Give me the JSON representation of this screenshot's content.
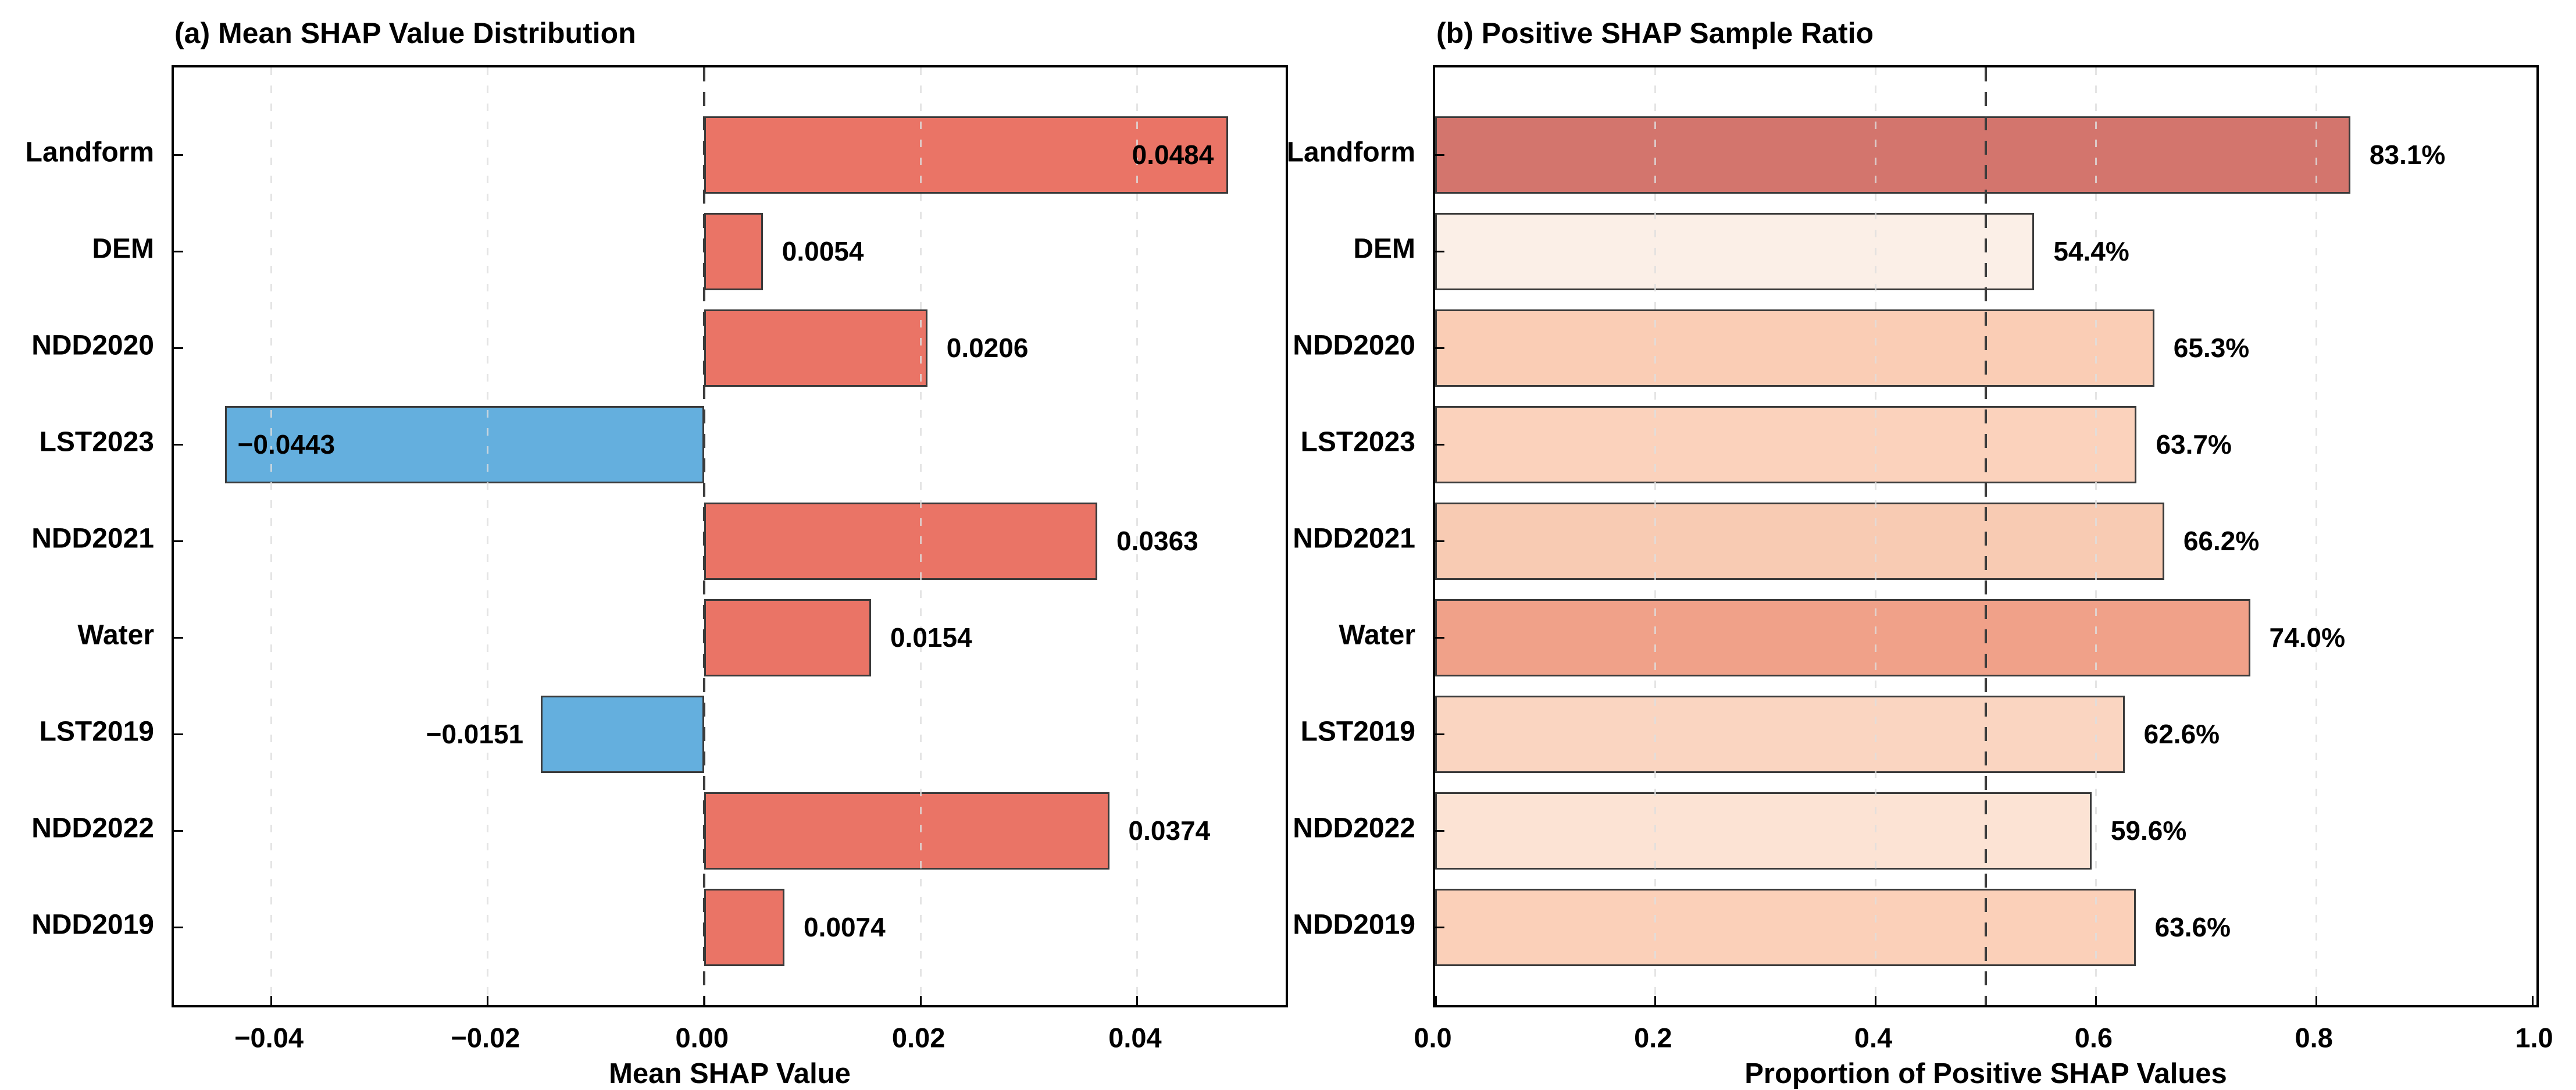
{
  "page": {
    "background": "#FFFFFF"
  },
  "chart_data": [
    {
      "type": "bar",
      "orientation": "horizontal",
      "panel": "a",
      "title": "(a) Mean SHAP Value Distribution",
      "xlabel": "Mean SHAP Value",
      "ylabel": "",
      "categories": [
        "Landform",
        "DEM",
        "NDD2020",
        "LST2023",
        "NDD2021",
        "Water",
        "LST2019",
        "NDD2022",
        "NDD2019"
      ],
      "values": [
        0.0484,
        0.0054,
        0.0206,
        -0.0443,
        0.0363,
        0.0154,
        -0.0151,
        0.0374,
        0.0074
      ],
      "value_labels": [
        "0.0484",
        "0.0054",
        "0.0206",
        "−0.0443",
        "0.0363",
        "0.0154",
        "−0.0151",
        "0.0374",
        "0.0074"
      ],
      "xlim": [
        -0.049,
        0.0537
      ],
      "xticks": [
        {
          "value": -0.04,
          "label": "−0.04"
        },
        {
          "value": -0.02,
          "label": "−0.02"
        },
        {
          "value": 0.0,
          "label": "0.00"
        },
        {
          "value": 0.02,
          "label": "0.02"
        },
        {
          "value": 0.04,
          "label": "0.04"
        }
      ],
      "reference_line": 0.0,
      "grid": true,
      "legend": "none",
      "colors": {
        "positive": "#EA7466",
        "negative": "#64AFDE",
        "bar_edge": "#3A3A3A",
        "reference_line": "#3D3D3D",
        "grid_line": "#DEDEDE"
      }
    },
    {
      "type": "bar",
      "orientation": "horizontal",
      "panel": "b",
      "title": "(b) Positive SHAP Sample Ratio",
      "xlabel": "Proportion of Positive SHAP Values",
      "ylabel": "",
      "categories": [
        "Landform",
        "DEM",
        "NDD2020",
        "LST2023",
        "NDD2021",
        "Water",
        "LST2019",
        "NDD2022",
        "NDD2019"
      ],
      "values": [
        0.831,
        0.544,
        0.653,
        0.637,
        0.662,
        0.74,
        0.626,
        0.596,
        0.636
      ],
      "value_labels": [
        "83.1%",
        "54.4%",
        "65.3%",
        "63.7%",
        "66.2%",
        "74.0%",
        "62.6%",
        "59.6%",
        "63.6%"
      ],
      "bar_colors": [
        "#D3756D",
        "#FBEFE7",
        "#FACDB5",
        "#FBD2BC",
        "#F8CBB3",
        "#F0A189",
        "#FAD5C1",
        "#FCE3D4",
        "#FBD0B9"
      ],
      "xlim": [
        0.0,
        1.0
      ],
      "xticks": [
        {
          "value": 0.0,
          "label": "0.0"
        },
        {
          "value": 0.2,
          "label": "0.2"
        },
        {
          "value": 0.4,
          "label": "0.4"
        },
        {
          "value": 0.6,
          "label": "0.6"
        },
        {
          "value": 0.8,
          "label": "0.8"
        },
        {
          "value": 1.0,
          "label": "1.0"
        }
      ],
      "reference_line": 0.5,
      "grid": true,
      "legend": "none",
      "colors": {
        "bar_edge": "#3A3A3A",
        "reference_line": "#3D3D3D",
        "grid_line": "#DEDEDE"
      }
    }
  ]
}
